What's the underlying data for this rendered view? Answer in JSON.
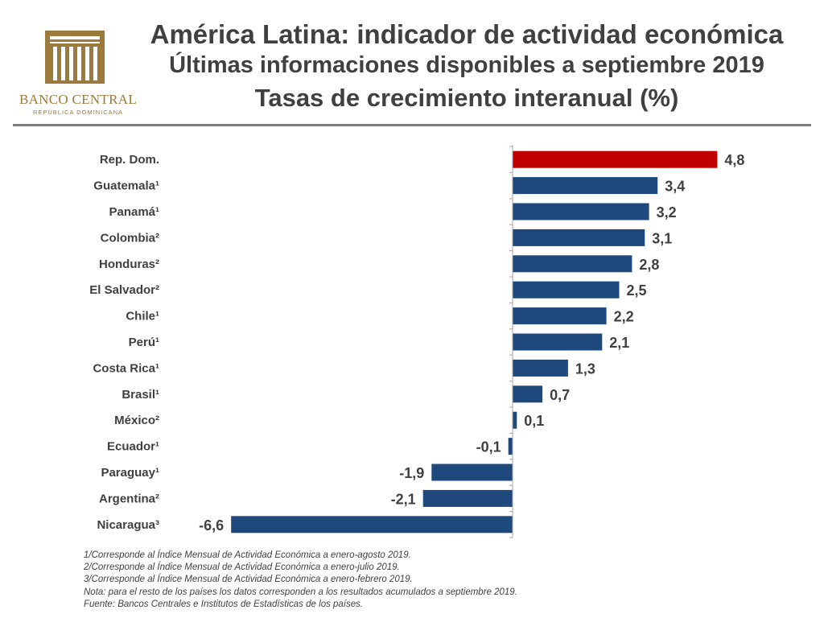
{
  "title": {
    "line1": "América Latina: indicador de actividad económica",
    "line2": "Últimas informaciones disponibles a septiembre 2019",
    "line3": "Tasas de crecimiento interanual (%)"
  },
  "logo": {
    "name": "BANCO CENTRAL",
    "sub": "REPÚBLICA DOMINICANA",
    "color": "#9c7a3c"
  },
  "chart_data": {
    "type": "bar",
    "orientation": "horizontal",
    "title": "Tasas de crecimiento interanual (%)",
    "categories": [
      "Rep. Dom.",
      "Guatemala¹",
      "Panamá¹",
      "Colombia²",
      "Honduras²",
      "El Salvador²",
      "Chile¹",
      "Perú¹",
      "Costa Rica¹",
      "Brasil¹",
      "México²",
      "Ecuador¹",
      "Paraguay¹",
      "Argentina²",
      "Nicaragua³"
    ],
    "values": [
      4.8,
      3.4,
      3.2,
      3.1,
      2.8,
      2.5,
      2.2,
      2.1,
      1.3,
      0.7,
      0.1,
      -0.1,
      -1.9,
      -2.1,
      -6.6
    ],
    "value_labels": [
      "4,8",
      "3,4",
      "3,2",
      "3,1",
      "2,8",
      "2,5",
      "2,2",
      "2,1",
      "1,3",
      "0,7",
      "0,1",
      "-0,1",
      "-1,9",
      "-2,1",
      "-6,6"
    ],
    "highlight": "Rep. Dom.",
    "colors": {
      "highlight": "#c00000",
      "default": "#1f497d"
    },
    "xlim": [
      -6.6,
      4.8
    ]
  },
  "notes": [
    "1/Corresponde al Índice Mensual de Actividad Económica a enero-agosto 2019.",
    "2/Corresponde al Índice Mensual de Actividad Económica a enero-julio 2019.",
    "3/Corresponde al Índice Mensual de Actividad Económica a enero-febrero 2019.",
    "Nota: para el resto de los países los datos corresponden a los resultados acumulados a septiembre 2019.",
    "Fuente: Bancos Centrales e Institutos de Estadísticas de los países."
  ]
}
